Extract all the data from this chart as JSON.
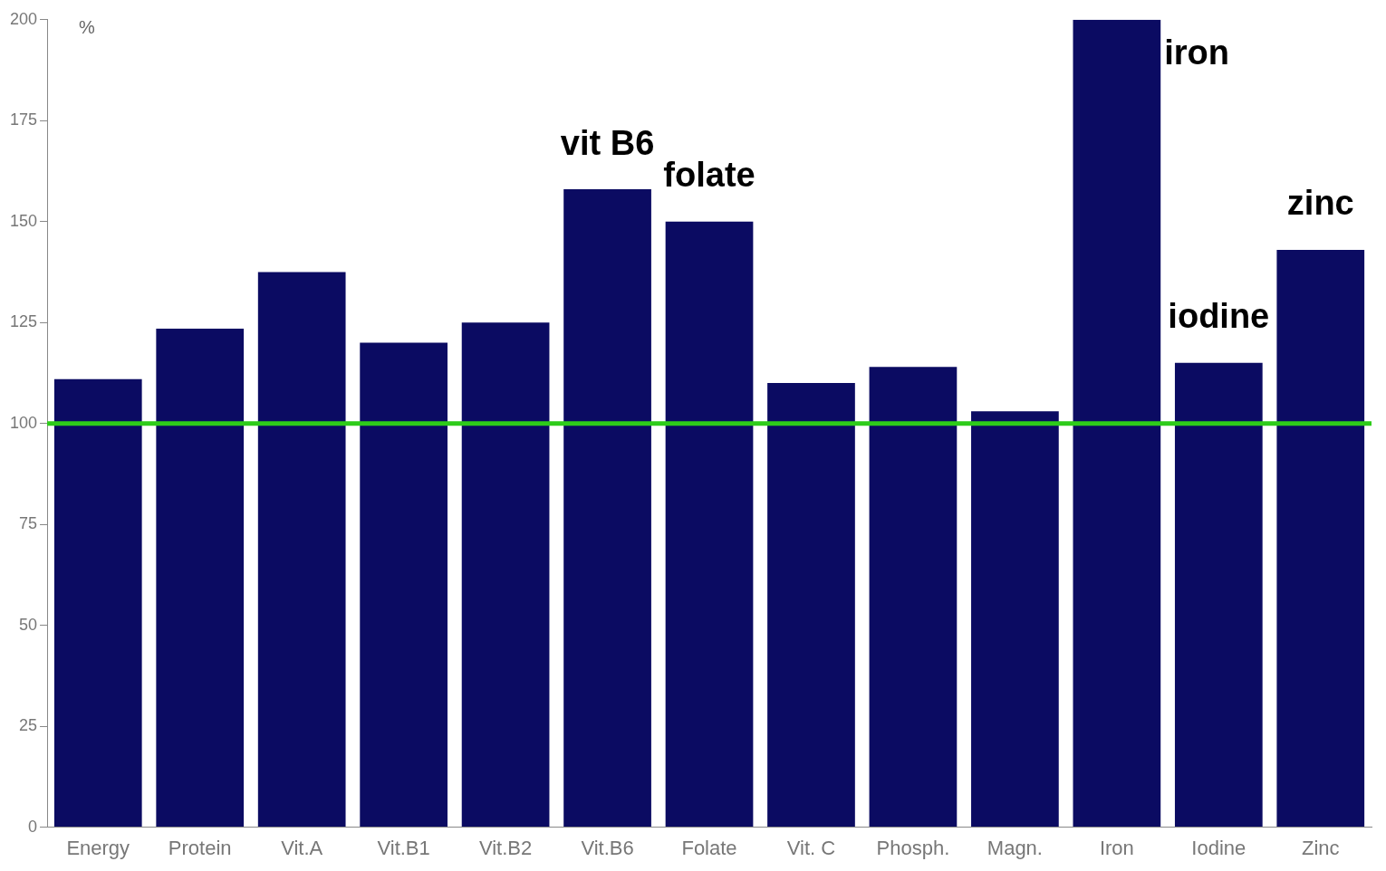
{
  "chart_data": {
    "type": "bar",
    "ylabel": "%",
    "categories": [
      "Energy",
      "Protein",
      "Vit.A",
      "Vit.B1",
      "Vit.B2",
      "Vit.B6",
      "Folate",
      "Vit. C",
      "Phosph.",
      "Magn.",
      "Iron",
      "Iodine",
      "Zinc"
    ],
    "values": [
      111,
      123.5,
      137.5,
      120,
      125,
      158,
      150,
      110,
      114,
      103,
      200,
      115,
      143
    ],
    "color": "#0b0b62",
    "ylim": [
      0,
      200
    ],
    "yticks": [
      0,
      25,
      50,
      75,
      100,
      125,
      150,
      175,
      200
    ],
    "grid": false,
    "legend": false,
    "ref_lines": [
      {
        "axis": "y",
        "value": 100,
        "color": "#2ecc1a"
      }
    ],
    "annotations": [
      {
        "text": "vit B6",
        "x": "Vit.B6",
        "y": 158
      },
      {
        "text": "folate",
        "x": "Folate",
        "y": 150
      },
      {
        "text": "iron",
        "x": "Iron",
        "y": 200
      },
      {
        "text": "iodine",
        "x": "Iodine",
        "y": 115
      },
      {
        "text": "zinc",
        "x": "Zinc",
        "y": 143
      }
    ]
  }
}
